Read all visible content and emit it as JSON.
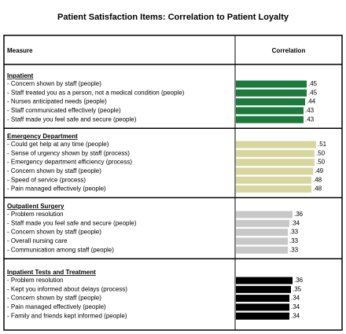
{
  "chart_data": {
    "type": "bar",
    "title": "Patient Satisfaction Items: Correlation to Patient Loyalty",
    "columns": [
      "Measure",
      "Correlation"
    ],
    "groups": [
      {
        "name": "Inpatient",
        "color": "#1b7a3c",
        "categories": [
          "- Concern shown by staff (people)",
          "- Staff treated you as a person, not a medical condition (people)",
          "- Nurses anticipated needs (people)",
          "- Staff communicated effectively (people)",
          "- Staff made you feel safe and secure (people)"
        ],
        "values": [
          0.45,
          0.45,
          0.44,
          0.43,
          0.43
        ],
        "value_labels": [
          ".45",
          ".45",
          ".44",
          ".43",
          ".43"
        ]
      },
      {
        "name": "Emergency Department",
        "color": "#d6d69e",
        "categories": [
          "- Could get help at any time (people)",
          "- Sense of urgency shown by staff (process)",
          "- Emergency department efficiency (process)",
          "- Concern shown by staff (people)",
          "- Speed of service (process)",
          "- Pain managed effectively (people)"
        ],
        "values": [
          0.51,
          0.5,
          0.5,
          0.49,
          0.48,
          0.48
        ],
        "value_labels": [
          ".51",
          ".50",
          ".50",
          ".49",
          ".48",
          ".48"
        ]
      },
      {
        "name": "Outpatient Surgery",
        "color": "#c8c8c8",
        "categories": [
          "- Problem resolution",
          "- Staff made you feel safe and secure (people)",
          "- Concern shown by staff (people)",
          "- Overall nursing care",
          "- Communication among staff (people)"
        ],
        "values": [
          0.36,
          0.34,
          0.33,
          0.33,
          0.33
        ],
        "value_labels": [
          ".36",
          ".34",
          ".33",
          ".33",
          ".33"
        ]
      },
      {
        "name": "Inpatient Tests and Treatment",
        "color": "#000000",
        "categories": [
          "- Problem resolution",
          "- Kept you informed about delays (process)",
          "- Concern shown by staff (people)",
          "- Pain managed effectively (people)",
          "- Family and friends kept informed (people)"
        ],
        "values": [
          0.36,
          0.35,
          0.34,
          0.34,
          0.34
        ],
        "value_labels": [
          ".36",
          ".35",
          ".34",
          ".34",
          ".34"
        ]
      }
    ]
  }
}
